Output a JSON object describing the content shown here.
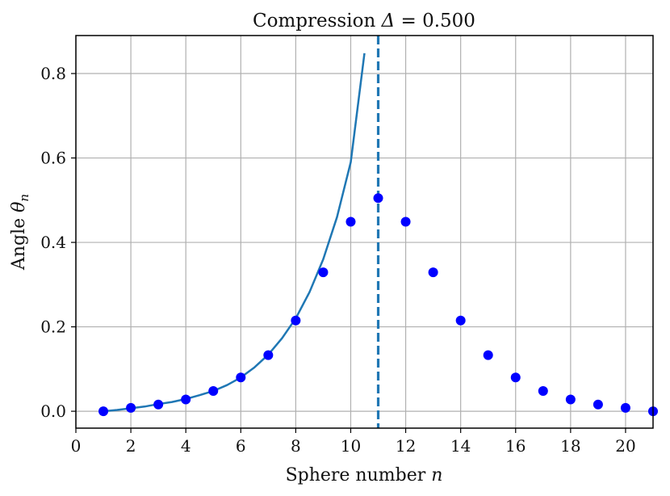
{
  "chart_data": {
    "type": "scatter",
    "title": {
      "prefix": "Compression ",
      "symbol": "Δ",
      "suffix": " = 0.500"
    },
    "xlabel": {
      "text": "Sphere number ",
      "var": "n"
    },
    "ylabel": {
      "text": "Angle ",
      "var": "θ",
      "sub": "n"
    },
    "xlim": [
      0,
      21
    ],
    "ylim": [
      -0.04,
      0.89
    ],
    "xticks": [
      0,
      2,
      4,
      6,
      8,
      10,
      12,
      14,
      16,
      18,
      20
    ],
    "xtick_labels": [
      "0",
      "2",
      "4",
      "6",
      "8",
      "10",
      "12",
      "14",
      "16",
      "18",
      "20"
    ],
    "yticks": [
      0.0,
      0.2,
      0.4,
      0.6,
      0.8
    ],
    "ytick_labels": [
      "0.0",
      "0.2",
      "0.4",
      "0.6",
      "0.8"
    ],
    "grid": true,
    "vline": {
      "x": 11,
      "style": "dashed",
      "color": "#1f77b4"
    },
    "series": [
      {
        "type": "scatter",
        "color": "#0000ff",
        "x": [
          1,
          2,
          3,
          4,
          5,
          6,
          7,
          8,
          9,
          10,
          11,
          12,
          13,
          14,
          15,
          16,
          17,
          18,
          19,
          20,
          21
        ],
        "y": [
          0.0,
          0.008,
          0.016,
          0.028,
          0.048,
          0.08,
          0.133,
          0.215,
          0.329,
          0.449,
          0.505,
          0.449,
          0.329,
          0.215,
          0.133,
          0.08,
          0.048,
          0.028,
          0.016,
          0.008,
          0.0
        ]
      },
      {
        "type": "line",
        "color": "#1f77b4",
        "x": [
          1.0,
          1.5,
          2.0,
          2.5,
          3.0,
          3.5,
          4.0,
          4.5,
          5.0,
          5.5,
          6.0,
          6.5,
          7.0,
          7.5,
          8.0,
          8.5,
          9.0,
          9.5,
          10.0,
          10.5
        ],
        "y": [
          0.0,
          0.003,
          0.007,
          0.011,
          0.017,
          0.022,
          0.029,
          0.038,
          0.048,
          0.062,
          0.08,
          0.104,
          0.134,
          0.173,
          0.22,
          0.282,
          0.36,
          0.46,
          0.59,
          0.848
        ]
      }
    ]
  }
}
